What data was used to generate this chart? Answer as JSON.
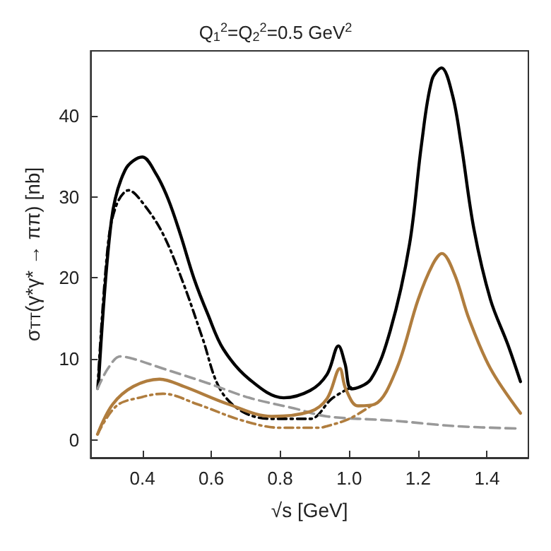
{
  "chart_data": {
    "type": "line",
    "title": "Q$_{1}$$^{2}$=Q$_{2}$$^{2}$=0.5 GeV$^{2}$",
    "xlabel": "√s [GeV]",
    "ylabel": "σ$_{TT}$(γ*γ* → ππ) [nb]",
    "xlim": [
      0.25,
      1.52
    ],
    "ylim": [
      -2.2,
      48
    ],
    "xticks": [
      0.4,
      0.6,
      0.8,
      {
        "value": 1,
        "label": "1.0"
      },
      1.2,
      1.4
    ],
    "yticks": [
      0,
      10,
      20,
      30,
      40
    ],
    "grid": false,
    "marker": "none",
    "series": [
      {
        "color": "#000000",
        "line_style": "solid",
        "x": [
          0.273,
          0.31,
          0.35,
          0.4,
          0.44,
          0.475,
          0.51,
          0.55,
          0.59,
          0.635,
          0.71,
          0.81,
          0.887,
          0.936,
          0.969,
          0.988,
          1.007,
          1.063,
          1.12,
          1.175,
          1.21,
          1.24,
          1.268,
          1.3,
          1.325,
          1.362,
          1.41,
          1.46,
          1.497
        ],
        "values": [
          7,
          27,
          33.3,
          34.9,
          32.8,
          29.7,
          25.4,
          19.9,
          15.5,
          11.2,
          7.5,
          5.2,
          6.1,
          8.1,
          11.6,
          9.4,
          6.3,
          7.5,
          13.6,
          24.1,
          36.5,
          44.4,
          45.9,
          42.5,
          36.5,
          26,
          17.3,
          11.8,
          7.2
        ]
      },
      {
        "color": "#000000",
        "line_style": "dashdot",
        "x": [
          0.27,
          0.3,
          0.325,
          0.36,
          0.4,
          0.46,
          0.52,
          0.575,
          0.625,
          0.69,
          0.775,
          0.887,
          0.95,
          1.01
        ],
        "values": [
          6.3,
          24,
          29,
          30.8,
          29.3,
          25.4,
          19.2,
          12.5,
          6.3,
          3.5,
          2.6,
          2.6,
          5.1,
          6.6
        ]
      },
      {
        "color": "#999999",
        "line_style": "dashed",
        "x": [
          0.27,
          0.3,
          0.336,
          0.374,
          0.46,
          0.59,
          0.71,
          0.84,
          0.936,
          1.12,
          1.31,
          1.497
        ],
        "values": [
          6.3,
          8.8,
          10.3,
          10,
          8.8,
          7,
          5.2,
          3.9,
          2.9,
          2.4,
          1.7,
          1.4
        ]
      },
      {
        "color": "#b07d3e",
        "line_style": "solid",
        "x": [
          0.27,
          0.314,
          0.374,
          0.45,
          0.52,
          0.65,
          0.775,
          0.887,
          0.936,
          0.973,
          0.99,
          1.025,
          1.074,
          1.138,
          1.2,
          1.243,
          1.269,
          1.306,
          1.348,
          1.41,
          1.497
        ],
        "values": [
          0.7,
          4.4,
          6.6,
          7.5,
          6.6,
          4.4,
          2.9,
          3.5,
          5.1,
          8.8,
          6.3,
          4.2,
          4.4,
          8.8,
          17.3,
          21.7,
          23,
          20.4,
          14.9,
          8.8,
          3.3
        ]
      },
      {
        "color": "#b07d3e",
        "line_style": "dashdot",
        "x": [
          0.27,
          0.325,
          0.4,
          0.46,
          0.56,
          0.69,
          0.8,
          0.913,
          0.936,
          1.0,
          1.063
        ],
        "values": [
          0.7,
          4.2,
          5.3,
          5.7,
          4.4,
          2.4,
          1.5,
          1.5,
          1.7,
          2.6,
          4.2
        ]
      }
    ]
  }
}
